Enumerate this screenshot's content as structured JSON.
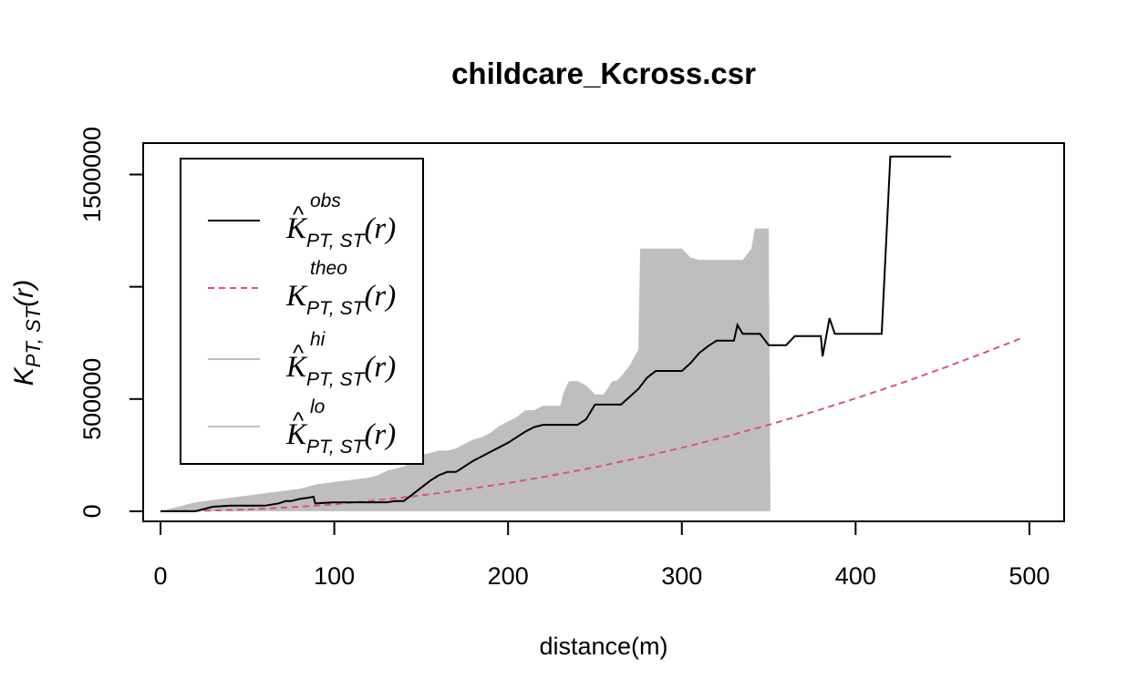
{
  "chart_data": {
    "type": "line",
    "title": "childcare_Kcross.csr",
    "xlabel": "distance(m)",
    "ylabel": {
      "main": "K",
      "sub": "PT, ST",
      "arg": "(r)"
    },
    "xlim": [
      -10,
      520
    ],
    "ylim": [
      -45000,
      1640000
    ],
    "xticks": [
      0,
      100,
      200,
      300,
      400,
      500
    ],
    "xtick_labels": [
      "0",
      "100",
      "200",
      "300",
      "400",
      "500"
    ],
    "yticks": [
      0,
      500000,
      1000000,
      1500000
    ],
    "ytick_labels": [
      "0",
      "500000",
      "",
      "1500000"
    ],
    "grid": false,
    "legend": {
      "position": "top-left",
      "entries": [
        {
          "key": "obs",
          "main": "K",
          "hat": true,
          "sup": "obs",
          "sub": "PT, ST",
          "arg": "(r)",
          "color": "#000000",
          "style": "solid"
        },
        {
          "key": "theo",
          "main": "K",
          "hat": false,
          "sup": "theo",
          "sub": "PT, ST",
          "arg": "(r)",
          "color": "#DF536B",
          "style": "dashed"
        },
        {
          "key": "hi",
          "main": "K",
          "hat": true,
          "sup": "hi",
          "sub": "PT, ST",
          "arg": "(r)",
          "color": "#BEBEBE",
          "style": "solid"
        },
        {
          "key": "lo",
          "main": "K",
          "hat": true,
          "sup": "lo",
          "sub": "PT, ST",
          "arg": "(r)",
          "color": "#BEBEBE",
          "style": "solid"
        }
      ]
    },
    "series": [
      {
        "name": "obs",
        "color": "#000000",
        "style": "solid",
        "x": [
          0,
          20,
          25,
          30,
          40,
          50,
          60,
          68,
          72,
          75,
          80,
          85,
          88,
          89,
          100,
          110,
          120,
          130,
          135,
          140,
          145,
          150,
          155,
          160,
          165,
          170,
          175,
          180,
          185,
          190,
          195,
          200,
          205,
          210,
          215,
          220,
          225,
          230,
          235,
          240,
          245,
          248,
          250,
          255,
          260,
          265,
          270,
          275,
          280,
          285,
          290,
          295,
          300,
          305,
          310,
          315,
          320,
          325,
          330,
          332,
          335,
          340,
          345,
          350,
          355,
          360,
          365,
          370,
          375,
          380,
          381,
          385,
          388,
          395,
          400,
          410,
          415,
          420,
          430,
          440,
          450,
          455
        ],
        "y": [
          0,
          0,
          10000,
          20000,
          25000,
          25000,
          25000,
          35000,
          45000,
          45000,
          55000,
          60000,
          65000,
          35000,
          40000,
          40000,
          40000,
          40000,
          45000,
          45000,
          75000,
          105000,
          135000,
          160000,
          175000,
          175000,
          200000,
          225000,
          245000,
          265000,
          285000,
          305000,
          330000,
          355000,
          375000,
          385000,
          385000,
          385000,
          385000,
          385000,
          410000,
          450000,
          475000,
          475000,
          475000,
          475000,
          510000,
          545000,
          595000,
          625000,
          625000,
          625000,
          625000,
          660000,
          705000,
          735000,
          760000,
          760000,
          760000,
          830000,
          790000,
          790000,
          790000,
          740000,
          740000,
          740000,
          780000,
          780000,
          780000,
          780000,
          690000,
          860000,
          790000,
          790000,
          790000,
          790000,
          790000,
          1580000,
          1580000,
          1580000,
          1580000,
          1580000
        ]
      },
      {
        "name": "theo",
        "color": "#DF536B",
        "style": "dashed",
        "x": [
          0,
          25,
          50,
          75,
          100,
          125,
          150,
          175,
          200,
          225,
          250,
          275,
          300,
          325,
          350,
          375,
          400,
          425,
          450,
          475,
          495
        ],
        "y": [
          0,
          1963,
          7854,
          17671,
          31416,
          49087,
          70686,
          96211,
          125664,
          159043,
          196350,
          237583,
          282743,
          331831,
          384845,
          441786,
          502655,
          567450,
          636173,
          708822,
          769769
        ]
      },
      {
        "name": "hi",
        "color": "#BEBEBE",
        "style": "solid",
        "x": [
          0,
          20,
          30,
          40,
          50,
          60,
          70,
          80,
          90,
          100,
          110,
          120,
          125,
          130,
          140,
          145,
          150,
          155,
          160,
          165,
          170,
          175,
          180,
          185,
          190,
          195,
          200,
          205,
          210,
          215,
          220,
          225,
          230,
          232,
          235,
          240,
          245,
          250,
          255,
          260,
          262,
          265,
          270,
          275,
          276,
          280,
          285,
          290,
          295,
          300,
          305,
          310,
          315,
          320,
          325,
          330,
          335,
          340,
          342,
          345,
          350,
          351
        ],
        "y": [
          0,
          40000,
          50000,
          60000,
          70000,
          80000,
          90000,
          100000,
          120000,
          130000,
          140000,
          150000,
          160000,
          180000,
          200000,
          220000,
          250000,
          260000,
          270000,
          270000,
          280000,
          300000,
          320000,
          330000,
          350000,
          380000,
          400000,
          420000,
          450000,
          450000,
          470000,
          470000,
          470000,
          530000,
          580000,
          580000,
          560000,
          520000,
          520000,
          580000,
          580000,
          600000,
          650000,
          720000,
          1170000,
          1170000,
          1170000,
          1170000,
          1170000,
          1170000,
          1130000,
          1120000,
          1120000,
          1120000,
          1120000,
          1120000,
          1120000,
          1170000,
          1260000,
          1260000,
          1260000,
          0
        ]
      },
      {
        "name": "lo",
        "color": "#BEBEBE",
        "style": "solid",
        "x": [
          0,
          350
        ],
        "y": [
          0,
          0
        ]
      }
    ]
  }
}
